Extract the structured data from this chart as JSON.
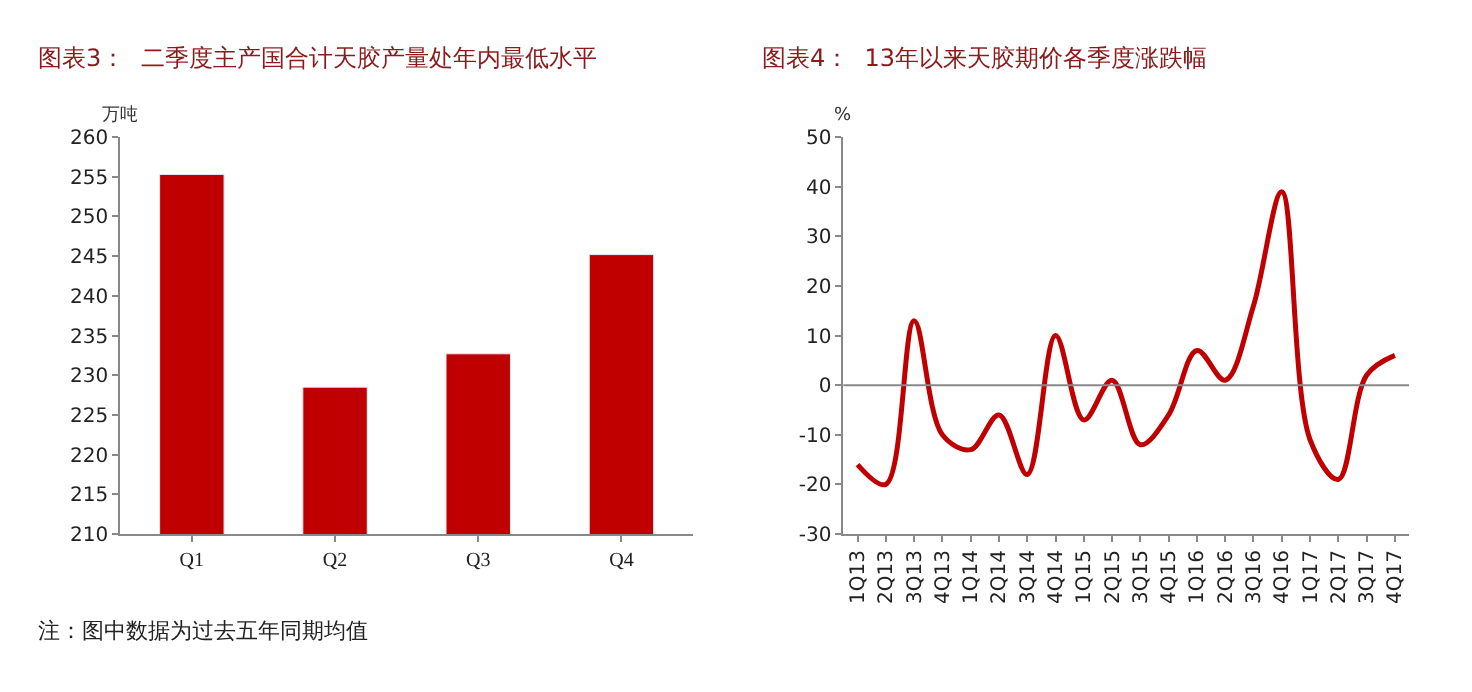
{
  "chart_data": [
    {
      "type": "bar",
      "title": "图表3：  二季度主产国合计天胶产量处年内最低水平",
      "ylabel": "万吨",
      "categories": [
        "Q1",
        "Q2",
        "Q3",
        "Q4"
      ],
      "values": [
        255.3,
        228.5,
        232.7,
        245.2
      ],
      "color": "#c00000",
      "ylim": [
        210,
        260
      ],
      "yticks": [
        210,
        215,
        220,
        225,
        230,
        235,
        240,
        245,
        250,
        255,
        260
      ],
      "annotations": [
        "注：图中数据为过去五年同期均值"
      ]
    },
    {
      "type": "line",
      "title": "图表4：  13年以来天胶期价各季度涨跌幅",
      "ylabel": "%",
      "categories": [
        "1Q13",
        "2Q13",
        "3Q13",
        "4Q13",
        "1Q14",
        "2Q14",
        "3Q14",
        "4Q14",
        "1Q15",
        "2Q15",
        "3Q15",
        "4Q15",
        "1Q16",
        "2Q16",
        "3Q16",
        "4Q16",
        "1Q17",
        "2Q17",
        "3Q17",
        "4Q17"
      ],
      "values": [
        -16,
        -20,
        13,
        -10,
        -13,
        -6,
        -18,
        10,
        -7,
        1,
        -12,
        -6,
        7,
        1,
        16,
        39,
        -11,
        -19,
        2,
        6
      ],
      "color": "#c00000",
      "ylim": [
        -30,
        50
      ],
      "yticks": [
        -30,
        -20,
        -10,
        0,
        10,
        20,
        30,
        40,
        50
      ],
      "ref_lines": [
        {
          "axis": "y",
          "value": 0,
          "color": "#888888"
        }
      ],
      "marker": "none",
      "line_style": "solid"
    }
  ]
}
